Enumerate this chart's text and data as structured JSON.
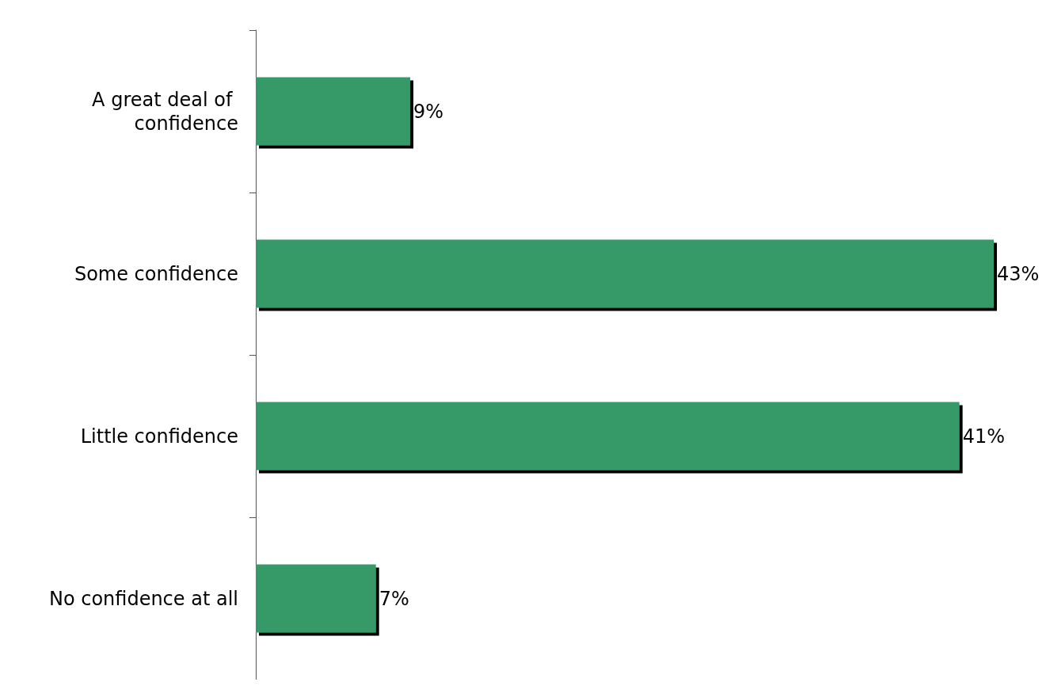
{
  "chart_data": {
    "type": "bar",
    "orientation": "horizontal",
    "categories": [
      "A great deal of confidence",
      "Some confidence",
      "Little confidence",
      "No confidence at all"
    ],
    "values": [
      9,
      43,
      41,
      7
    ],
    "color": "#359a68",
    "value_labels": [
      "9%",
      "43%",
      "41%",
      "7%"
    ]
  }
}
